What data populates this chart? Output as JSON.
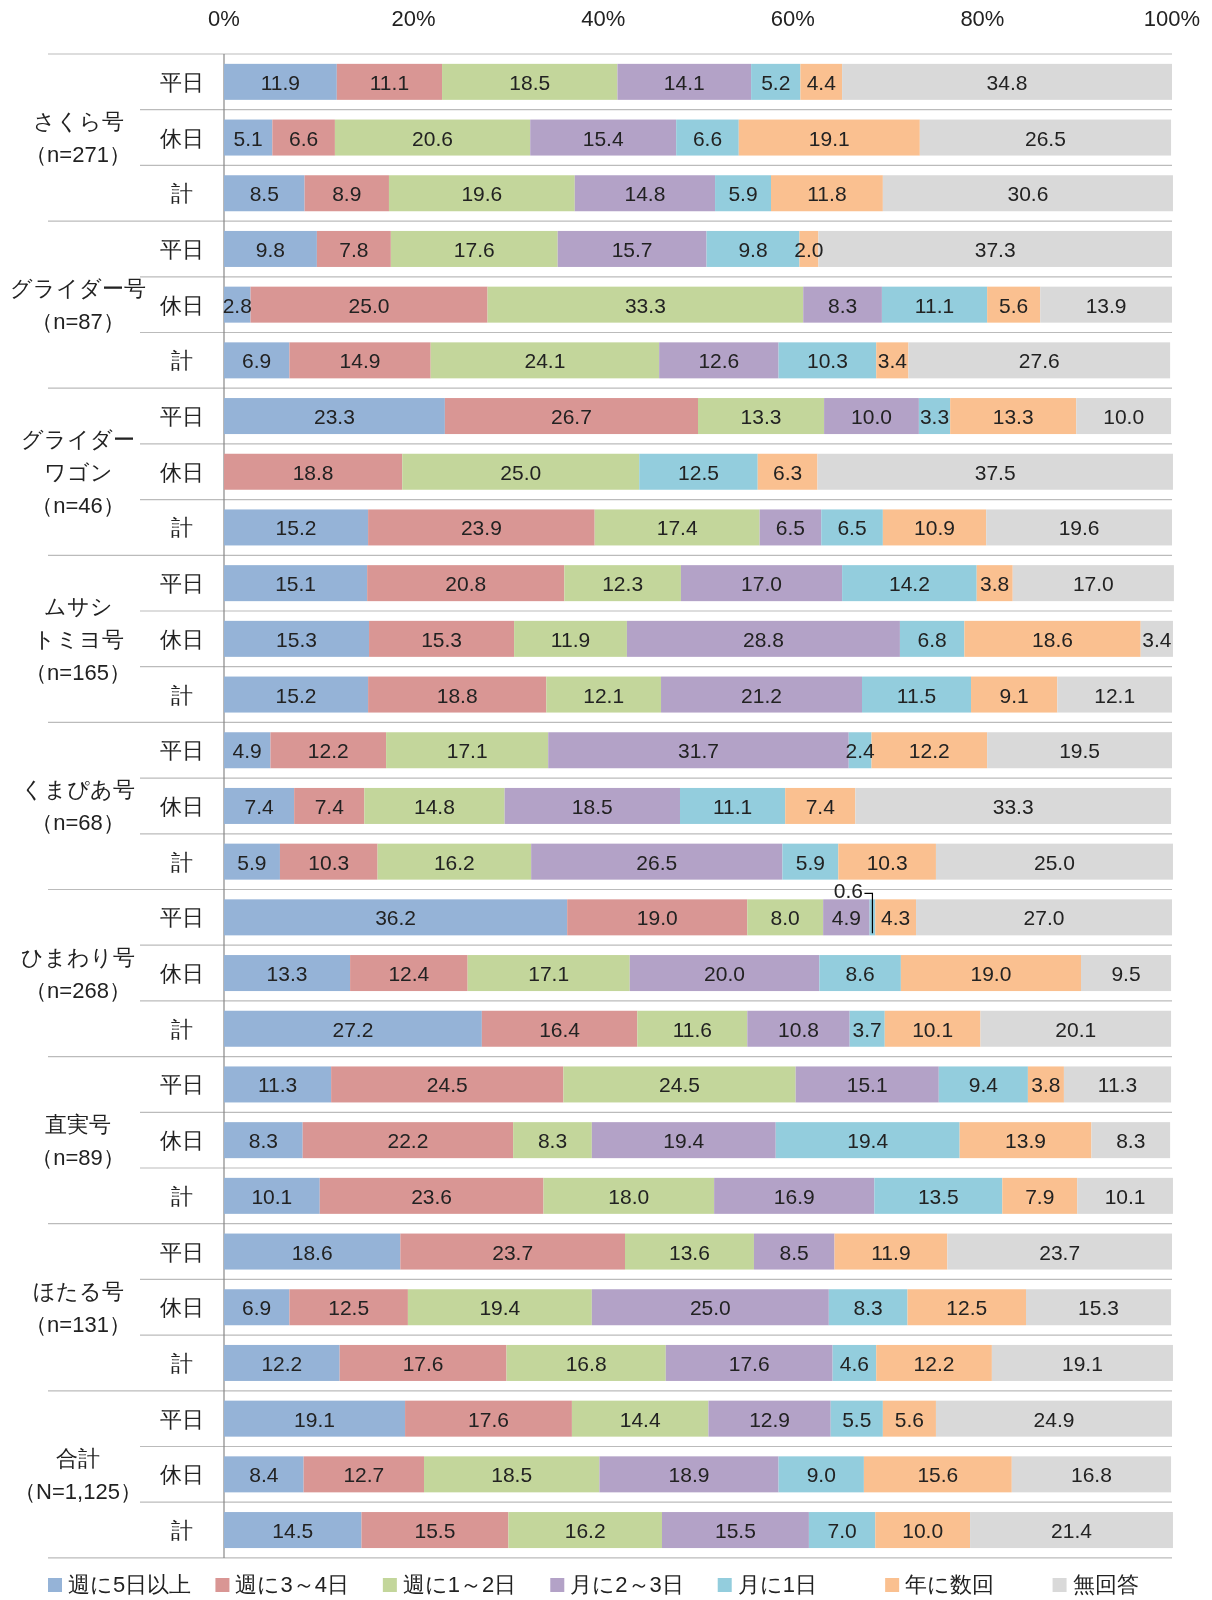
{
  "chart_data": {
    "type": "bar",
    "orientation": "horizontal",
    "stacked": true,
    "grid": false,
    "legend": "bottom",
    "categories": [
      "平日",
      "休日",
      "計",
      "平日",
      "休日",
      "計",
      "平日",
      "休日",
      "計",
      "平日",
      "休日",
      "計",
      "平日",
      "休日",
      "計",
      "平日",
      "休日",
      "計",
      "平日",
      "休日",
      "計",
      "平日",
      "休日",
      "計",
      "平日",
      "休日",
      "計"
    ],
    "annotations": [
      "さくら号",
      "（n=271）",
      "グライダー号",
      "（n=87）",
      "グライダー",
      "ワゴン",
      "（n=46）",
      "ムサシ",
      "トミヨ号",
      "（n=165）",
      "くまぴあ号",
      "（n=68）",
      "ひまわり号",
      "（n=268）",
      "直実号",
      "（n=89）",
      "ほたる号",
      "（n=131）",
      "合計",
      "（N=1,125）"
    ],
    "xlim": [
      0,
      100
    ],
    "xticks": [
      {
        "value": 0,
        "label": "0%"
      },
      {
        "value": 20,
        "label": "20%"
      },
      {
        "value": 40,
        "label": "40%"
      },
      {
        "value": 60,
        "label": "60%"
      },
      {
        "value": 80,
        "label": "80%"
      },
      {
        "value": 100,
        "label": "100%"
      }
    ],
    "series": [
      {
        "name": "週に5日以上",
        "color": "#95b3d7",
        "values": [
          11.9,
          5.1,
          8.5,
          9.8,
          2.8,
          6.9,
          23.3,
          null,
          15.2,
          15.1,
          15.3,
          15.2,
          4.9,
          7.4,
          5.9,
          36.2,
          13.3,
          27.2,
          11.3,
          8.3,
          10.1,
          18.6,
          6.9,
          12.2,
          19.1,
          8.4,
          14.5
        ],
        "value_labels": [
          "11.9",
          "5.1",
          "8.5",
          "9.8",
          "2.8",
          "6.9",
          "23.3",
          null,
          "15.2",
          "15.1",
          "15.3",
          "15.2",
          "4.9",
          "7.4",
          "5.9",
          "36.2",
          "13.3",
          "27.2",
          "11.3",
          "8.3",
          "10.1",
          "18.6",
          "6.9",
          "12.2",
          "19.1",
          "8.4",
          "14.5"
        ]
      },
      {
        "name": "週に3～4日",
        "color": "#d99694",
        "values": [
          11.1,
          6.6,
          8.9,
          7.8,
          25.0,
          14.9,
          26.7,
          18.8,
          23.9,
          20.8,
          15.3,
          18.8,
          12.2,
          7.4,
          10.3,
          19.0,
          12.4,
          16.4,
          24.5,
          22.2,
          23.6,
          23.7,
          12.5,
          17.6,
          17.6,
          12.7,
          15.5
        ],
        "value_labels": [
          "11.1",
          "6.6",
          "8.9",
          "7.8",
          "25.0",
          "14.9",
          "26.7",
          "18.8",
          "23.9",
          "20.8",
          "15.3",
          "18.8",
          "12.2",
          "7.4",
          "10.3",
          "19.0",
          "12.4",
          "16.4",
          "24.5",
          "22.2",
          "23.6",
          "23.7",
          "12.5",
          "17.6",
          "17.6",
          "12.7",
          "15.5"
        ]
      },
      {
        "name": "週に1～2日",
        "color": "#c3d69b",
        "values": [
          18.5,
          20.6,
          19.6,
          17.6,
          33.3,
          24.1,
          13.3,
          25.0,
          17.4,
          12.3,
          11.9,
          12.1,
          17.1,
          14.8,
          16.2,
          8.0,
          17.1,
          11.6,
          24.5,
          8.3,
          18.0,
          13.6,
          19.4,
          16.8,
          14.4,
          18.5,
          16.2
        ],
        "value_labels": [
          "18.5",
          "20.6",
          "19.6",
          "17.6",
          "33.3",
          "24.1",
          "13.3",
          "25.0",
          "17.4",
          "12.3",
          "11.9",
          "12.1",
          "17.1",
          "14.8",
          "16.2",
          "8.0",
          "17.1",
          "11.6",
          "24.5",
          "8.3",
          "18.0",
          "13.6",
          "19.4",
          "16.8",
          "14.4",
          "18.5",
          "16.2"
        ]
      },
      {
        "name": "月に2～3日",
        "color": "#b3a2c7",
        "values": [
          14.1,
          15.4,
          14.8,
          15.7,
          8.3,
          12.6,
          10.0,
          null,
          6.5,
          17.0,
          28.8,
          21.2,
          31.7,
          18.5,
          26.5,
          4.9,
          20.0,
          10.8,
          15.1,
          19.4,
          16.9,
          8.5,
          25.0,
          17.6,
          12.9,
          18.9,
          15.5
        ],
        "value_labels": [
          "14.1",
          "15.4",
          "14.8",
          "15.7",
          "8.3",
          "12.6",
          "10.0",
          null,
          "6.5",
          "17.0",
          "28.8",
          "21.2",
          "31.7",
          "18.5",
          "26.5",
          "4.9",
          "20.0",
          "10.8",
          "15.1",
          "19.4",
          "16.9",
          "8.5",
          "25.0",
          "17.6",
          "12.9",
          "18.9",
          "15.5"
        ]
      },
      {
        "name": "月に1日",
        "color": "#93cddd",
        "values": [
          5.2,
          6.6,
          5.9,
          9.8,
          11.1,
          10.3,
          3.3,
          12.5,
          6.5,
          14.2,
          6.8,
          11.5,
          2.4,
          11.1,
          5.9,
          0.6,
          8.6,
          3.7,
          9.4,
          19.4,
          13.5,
          null,
          8.3,
          4.6,
          5.5,
          9.0,
          7.0
        ],
        "value_labels": [
          "5.2",
          "6.6",
          "5.9",
          "9.8",
          "11.1",
          "10.3",
          "3.3",
          "12.5",
          "6.5",
          "14.2",
          "6.8",
          "11.5",
          "2.4",
          "11.1",
          "5.9",
          "0.6",
          "8.6",
          "3.7",
          "9.4",
          "19.4",
          "13.5",
          null,
          "8.3",
          "4.6",
          "5.5",
          "9.0",
          "7.0"
        ]
      },
      {
        "name": "年に数回",
        "color": "#fac090",
        "values": [
          4.4,
          19.1,
          11.8,
          2.0,
          5.6,
          3.4,
          13.3,
          6.3,
          10.9,
          3.8,
          18.6,
          9.1,
          12.2,
          7.4,
          10.3,
          4.3,
          19.0,
          10.1,
          3.8,
          13.9,
          7.9,
          11.9,
          12.5,
          12.2,
          5.6,
          15.6,
          10.0
        ],
        "value_labels": [
          "4.4",
          "19.1",
          "11.8",
          "2.0",
          "5.6",
          "3.4",
          "13.3",
          "6.3",
          "10.9",
          "3.8",
          "18.6",
          "9.1",
          "12.2",
          "7.4",
          "10.3",
          "4.3",
          "19.0",
          "10.1",
          "3.8",
          "13.9",
          "7.9",
          "11.9",
          "12.5",
          "12.2",
          "5.6",
          "15.6",
          "10.0"
        ]
      },
      {
        "name": "無回答",
        "color": "#d9d9d9",
        "values": [
          34.8,
          26.5,
          30.6,
          37.3,
          13.9,
          27.6,
          10.0,
          37.5,
          19.6,
          17.0,
          3.4,
          12.1,
          19.5,
          33.3,
          25.0,
          27.0,
          9.5,
          20.1,
          11.3,
          8.3,
          10.1,
          23.7,
          15.3,
          19.1,
          24.9,
          16.8,
          21.4
        ],
        "value_labels": [
          "34.8",
          "26.5",
          "30.6",
          "37.3",
          "13.9",
          "27.6",
          "10.0",
          "37.5",
          "19.6",
          "17.0",
          "3.4",
          "12.1",
          "19.5",
          "33.3",
          "25.0",
          "27.0",
          "9.5",
          "20.1",
          "11.3",
          "8.3",
          "10.1",
          "23.7",
          "15.3",
          "19.1",
          "24.9",
          "16.8",
          "21.4"
        ]
      }
    ]
  }
}
